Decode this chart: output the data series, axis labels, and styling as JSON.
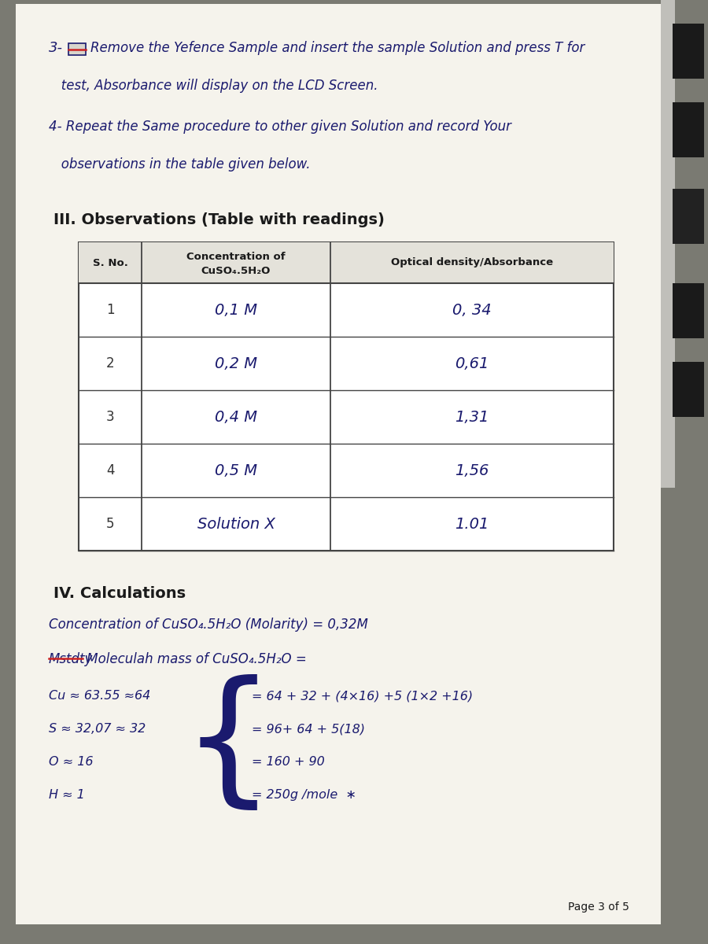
{
  "outer_bg": "#7a7a72",
  "page_bg": "#f0ede4",
  "paper_bg": "#f5f3ec",
  "text_color": "#1a1a1a",
  "handwriting_color": "#1a1a6e",
  "strike_color": "#cc2222",
  "keyboard_color": "#2a2a2a",
  "step3_line1": "Remove the Yefence Sample and insert the sample Solution and press T for",
  "step3_line2": "   test, Absorbance will display on the LCD Screen.",
  "step4_line1": "4- Repeat the Same procedure to other given Solution and record Your",
  "step4_line2": "   observations in the table given below.",
  "section_title": "III. Observations (Table with readings)",
  "table_headers_col0": "S. No.",
  "table_headers_col1a": "Concentration of",
  "table_headers_col1b": "CuSO₄.5H₂O",
  "table_headers_col2": "Optical density/Absorbance",
  "table_rows": [
    [
      "1",
      "0,1 M",
      "0, 34"
    ],
    [
      "2",
      "0,2 M",
      "0,61"
    ],
    [
      "3",
      "0,4 M",
      "1,31"
    ],
    [
      "4",
      "0,5 M",
      "1,56"
    ],
    [
      "5",
      "Solution X",
      "1.01"
    ]
  ],
  "calc_title": "IV. Calculations",
  "calc_line1": "Concentration of CuSO₄.5H₂O (Molarity) = 0,32M",
  "calc_strike_text": "Mstdty",
  "calc_line2_rest": " Moleculah mass of CuSO₄.5H₂O =",
  "calc_col1": [
    "Cu ≈ 63.55 ≈64",
    "S ≈ 32,07 ≈ 32",
    "O ≈ 16",
    "H ≈ 1"
  ],
  "calc_col2": [
    "= 64 + 32 + (4×16) +5 (1×2 +16)",
    "= 96+ 64 + 5(18)",
    "= 160 + 90",
    "= 250g /mole  ∗"
  ],
  "page_label": "Page 3 of 5"
}
